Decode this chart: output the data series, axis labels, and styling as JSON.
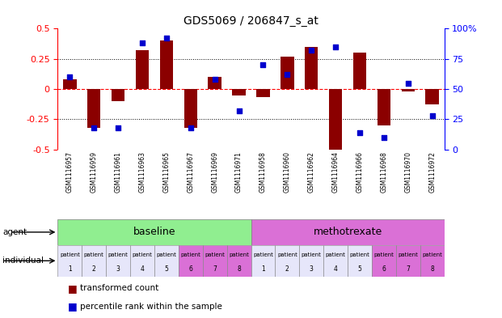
{
  "title": "GDS5069 / 206847_s_at",
  "samples": [
    "GSM1116957",
    "GSM1116959",
    "GSM1116961",
    "GSM1116963",
    "GSM1116965",
    "GSM1116967",
    "GSM1116969",
    "GSM1116971",
    "GSM1116958",
    "GSM1116960",
    "GSM1116962",
    "GSM1116964",
    "GSM1116966",
    "GSM1116968",
    "GSM1116970",
    "GSM1116972"
  ],
  "bar_values": [
    0.08,
    -0.32,
    -0.1,
    0.32,
    0.4,
    -0.32,
    0.1,
    -0.05,
    -0.07,
    0.27,
    0.35,
    -0.5,
    0.3,
    -0.3,
    -0.02,
    -0.13
  ],
  "dot_percentiles": [
    60,
    18,
    18,
    88,
    92,
    18,
    58,
    32,
    70,
    62,
    82,
    85,
    14,
    10,
    55,
    28
  ],
  "agent_groups": [
    {
      "label": "baseline",
      "start": 0,
      "end": 8,
      "color": "#90EE90"
    },
    {
      "label": "methotrexate",
      "start": 8,
      "end": 16,
      "color": "#DA70D6"
    }
  ],
  "individual_labels_top": [
    "patient",
    "patient",
    "patient",
    "patient",
    "patient",
    "patient",
    "patient",
    "patient",
    "patient",
    "patient",
    "patient",
    "patient",
    "patient",
    "patient",
    "patient",
    "patient"
  ],
  "individual_labels_bot": [
    "1",
    "2",
    "3",
    "4",
    "5",
    "6",
    "7",
    "8",
    "1",
    "2",
    "3",
    "4",
    "5",
    "6",
    "7",
    "8"
  ],
  "individual_colors": [
    "#E6E6FA",
    "#E6E6FA",
    "#E6E6FA",
    "#E6E6FA",
    "#E6E6FA",
    "#DA70D6",
    "#DA70D6",
    "#DA70D6",
    "#E6E6FA",
    "#E6E6FA",
    "#E6E6FA",
    "#E6E6FA",
    "#E6E6FA",
    "#DA70D6",
    "#DA70D6",
    "#DA70D6"
  ],
  "bar_color": "#8B0000",
  "dot_color": "#0000CD",
  "ylim": [
    -0.5,
    0.5
  ],
  "y2lim": [
    0,
    100
  ],
  "y_ticks": [
    -0.5,
    -0.25,
    0,
    0.25,
    0.5
  ],
  "y2_ticks": [
    0,
    25,
    50,
    75,
    100
  ],
  "y2_labels": [
    "0",
    "25",
    "50",
    "75",
    "100%"
  ],
  "background_color": "#ffffff",
  "sample_bg_color": "#C0C0C0",
  "legend_items": [
    "transformed count",
    "percentile rank within the sample"
  ],
  "legend_colors": [
    "#8B0000",
    "#0000CD"
  ]
}
